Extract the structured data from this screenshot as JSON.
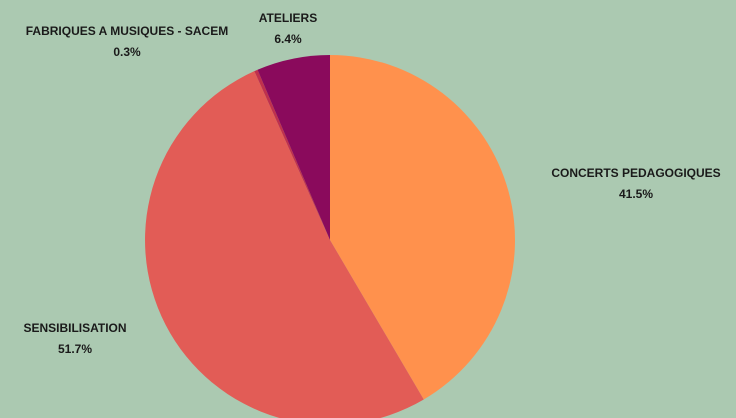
{
  "chart_data": {
    "type": "pie",
    "title": "",
    "slices": [
      {
        "label": "CONCERTS PEDAGOGIQUES",
        "value": 41.5,
        "display": "41.5%",
        "color": "#ff914d"
      },
      {
        "label": "SENSIBILISATION",
        "value": 51.7,
        "display": "51.7%",
        "color": "#e25c56"
      },
      {
        "label": "FABRIQUES A MUSIQUES - SACEM",
        "value": 0.3,
        "display": "0.3%",
        "color": "#c0304d"
      },
      {
        "label": "ATELIERS",
        "value": 6.4,
        "display": "6.4%",
        "color": "#8a0a5c"
      }
    ],
    "start_angle": "12 o'clock",
    "direction": "clockwise",
    "legend": "none",
    "labels": "outside"
  },
  "colors": {
    "background": "#abc9b1",
    "label_text": "#1a1a1a"
  }
}
